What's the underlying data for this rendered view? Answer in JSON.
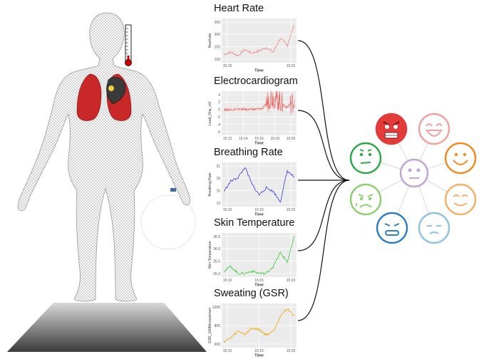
{
  "panels": [
    {
      "title": "Heart Rate",
      "ylabel": "Heartrate",
      "xlabel": "Time",
      "yticks": [
        "250",
        "200",
        "150",
        "100"
      ],
      "xticks": [
        "15:15",
        "15:20"
      ],
      "color": "#f08080"
    },
    {
      "title": "Electrocardiogram",
      "ylabel": "Lead_One_mV",
      "xlabel": "Time",
      "yticks": [
        "4",
        "2",
        "0",
        "-2",
        "-4",
        "-6"
      ],
      "xticks": [
        "15:12",
        "15:14",
        "15:16",
        "15:18",
        "15:20"
      ],
      "color": "#f06c6c"
    },
    {
      "title": "Breathing Rate",
      "ylabel": "Breathing Rate",
      "xlabel": "Time",
      "yticks": [
        "21",
        "18",
        "15",
        "12"
      ],
      "xticks": [
        "15:10",
        "15:15",
        "15:20"
      ],
      "color": "#3a3ad6"
    },
    {
      "title": "Skin Temperature",
      "ylabel": "Skin Temperature",
      "xlabel": "Time",
      "yticks": [
        "36.5",
        "36.0",
        "35.5",
        "35.0"
      ],
      "xticks": [
        "15:10",
        "15:15",
        "15:20"
      ],
      "color": "#33cc33"
    },
    {
      "title": "Sweating (GSR)",
      "ylabel": "GSR_100Microsiemen",
      "xlabel": "Time",
      "yticks": [
        "1000",
        "800",
        "600"
      ],
      "xticks": [
        "15:10",
        "15:15",
        "15:20"
      ],
      "color": "#f0a500"
    }
  ],
  "chart_data": [
    {
      "type": "line",
      "title": "Heart Rate",
      "xlabel": "Time",
      "ylabel": "Heartrate",
      "x": [
        "15:10",
        "15:11",
        "15:12",
        "15:13",
        "15:14",
        "15:15",
        "15:16",
        "15:17",
        "15:18",
        "15:19",
        "15:20"
      ],
      "series": [
        {
          "values": [
            110,
            120,
            105,
            130,
            115,
            125,
            140,
            120,
            180,
            150,
            240
          ]
        }
      ],
      "ylim": [
        80,
        260
      ]
    },
    {
      "type": "line",
      "title": "Electrocardiogram",
      "xlabel": "Time",
      "ylabel": "Lead_One_mV",
      "x": [
        "15:11",
        "15:12",
        "15:13",
        "15:14",
        "15:15",
        "15:16",
        "15:17",
        "15:18",
        "15:19",
        "15:20"
      ],
      "series": [
        {
          "values": [
            0.5,
            0.5,
            0.6,
            0.5,
            0.6,
            0.8,
            4,
            3,
            1,
            3
          ]
        }
      ],
      "ylim": [
        -6,
        5
      ]
    },
    {
      "type": "line",
      "title": "Breathing Rate",
      "xlabel": "Time",
      "ylabel": "Breathing Rate",
      "x": [
        "15:10",
        "15:11",
        "15:12",
        "15:13",
        "15:14",
        "15:15",
        "15:16",
        "15:17",
        "15:18",
        "15:19",
        "15:20"
      ],
      "series": [
        {
          "values": [
            14,
            17,
            18,
            21,
            16,
            13,
            15,
            14,
            11,
            20,
            18
          ]
        }
      ],
      "ylim": [
        10,
        22
      ]
    },
    {
      "type": "line",
      "title": "Skin Temperature",
      "xlabel": "Time",
      "ylabel": "Skin Temperature",
      "x": [
        "15:10",
        "15:11",
        "15:12",
        "15:13",
        "15:14",
        "15:15",
        "15:16",
        "15:17",
        "15:18",
        "15:19",
        "15:20"
      ],
      "series": [
        {
          "values": [
            35.1,
            35.3,
            35.0,
            35.0,
            35.1,
            35.0,
            35.0,
            35.3,
            35.9,
            35.5,
            36.6
          ]
        }
      ],
      "ylim": [
        34.9,
        36.7
      ]
    },
    {
      "type": "line",
      "title": "Sweating (GSR)",
      "xlabel": "Time",
      "ylabel": "GSR_100Microsiemen",
      "x": [
        "15:10",
        "15:11",
        "15:12",
        "15:13",
        "15:14",
        "15:15",
        "15:16",
        "15:17",
        "15:18",
        "15:19",
        "15:20"
      ],
      "series": [
        {
          "values": [
            560,
            610,
            700,
            660,
            740,
            720,
            650,
            700,
            900,
            1000,
            900
          ]
        }
      ],
      "ylim": [
        500,
        1050
      ]
    }
  ],
  "emotions": [
    {
      "name": "angry",
      "color": "#e33a3a"
    },
    {
      "name": "laughing",
      "color": "#f2a0a0"
    },
    {
      "name": "happy",
      "color": "#f28a22"
    },
    {
      "name": "content",
      "color": "#f5b266"
    },
    {
      "name": "calm",
      "color": "#8fc3e6"
    },
    {
      "name": "tense",
      "color": "#2f7fc4"
    },
    {
      "name": "sad",
      "color": "#8ccf6e"
    },
    {
      "name": "disgusted",
      "color": "#2fa84a"
    },
    {
      "name": "neutral",
      "color": "#c0a6d6"
    }
  ]
}
